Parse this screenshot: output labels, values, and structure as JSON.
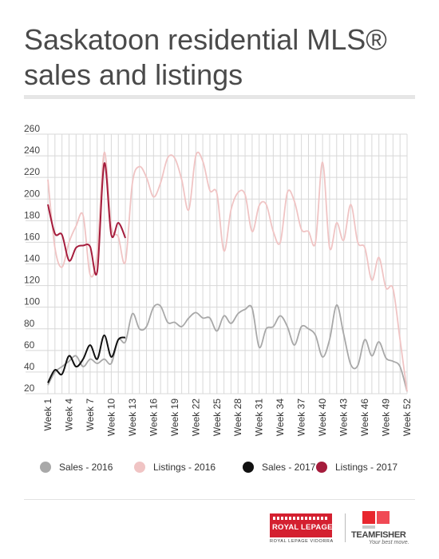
{
  "title_line1": "Saskatoon residential MLS®",
  "title_line2": "sales and listings",
  "chart_data": {
    "type": "line",
    "ylim": [
      20,
      260
    ],
    "yticks": [
      20,
      40,
      60,
      80,
      100,
      120,
      140,
      160,
      180,
      200,
      220,
      240,
      260
    ],
    "xrange": [
      1,
      52
    ],
    "xtick_labels": [
      "Week 1",
      "Week 4",
      "Week 7",
      "Week 10",
      "Week 13",
      "Week 16",
      "Week 19",
      "Week 22",
      "Week 25",
      "Week 28",
      "Week 31",
      "Week 34",
      "Week 37",
      "Week 40",
      "Week 43",
      "Week 46",
      "Week 49",
      "Week 52"
    ],
    "grid": true,
    "legend_position": "bottom",
    "series": [
      {
        "name": "Sales - 2016",
        "color": "#a8a8a8",
        "x": [
          1,
          2,
          3,
          4,
          5,
          6,
          7,
          8,
          9,
          10,
          11,
          12,
          13,
          14,
          15,
          16,
          17,
          18,
          19,
          20,
          21,
          22,
          23,
          24,
          25,
          26,
          27,
          28,
          29,
          30,
          31,
          32,
          33,
          34,
          35,
          36,
          37,
          38,
          39,
          40,
          41,
          42,
          43,
          44,
          45,
          46,
          47,
          48,
          49,
          50,
          51,
          52
        ],
        "y": [
          28,
          40,
          45,
          50,
          55,
          45,
          52,
          48,
          52,
          48,
          70,
          68,
          94,
          80,
          82,
          100,
          101,
          86,
          86,
          82,
          90,
          95,
          90,
          90,
          78,
          92,
          85,
          94,
          98,
          99,
          63,
          80,
          82,
          92,
          82,
          65,
          82,
          80,
          74,
          54,
          70,
          102,
          75,
          47,
          46,
          70,
          55,
          68,
          53,
          50,
          45,
          22
        ]
      },
      {
        "name": "Listings - 2016",
        "color": "#f0c4c4",
        "x": [
          1,
          2,
          3,
          4,
          5,
          6,
          7,
          8,
          9,
          10,
          11,
          12,
          13,
          14,
          15,
          16,
          17,
          18,
          19,
          20,
          21,
          22,
          23,
          24,
          25,
          26,
          27,
          28,
          29,
          30,
          31,
          32,
          33,
          34,
          35,
          36,
          37,
          38,
          39,
          40,
          41,
          42,
          43,
          44,
          45,
          46,
          47,
          48,
          49,
          50,
          51,
          52
        ],
        "y": [
          218,
          155,
          137,
          160,
          175,
          185,
          130,
          150,
          243,
          175,
          165,
          142,
          215,
          230,
          220,
          202,
          215,
          238,
          238,
          218,
          190,
          240,
          235,
          208,
          205,
          152,
          190,
          206,
          204,
          170,
          194,
          195,
          170,
          160,
          206,
          198,
          172,
          170,
          160,
          234,
          155,
          178,
          162,
          195,
          160,
          155,
          125,
          146,
          118,
          117,
          70,
          22
        ]
      },
      {
        "name": "Sales - 2017",
        "color": "#111111",
        "x": [
          1,
          2,
          3,
          4,
          5,
          6,
          7,
          8,
          9,
          10,
          11,
          12
        ],
        "y": [
          30,
          42,
          38,
          55,
          45,
          52,
          65,
          52,
          74,
          54,
          70,
          72
        ]
      },
      {
        "name": "Listings - 2017",
        "color": "#a51c3c",
        "x": [
          1,
          2,
          3,
          4,
          5,
          6,
          7,
          8,
          9,
          10,
          11,
          12
        ],
        "y": [
          195,
          168,
          167,
          143,
          155,
          157,
          156,
          133,
          233,
          167,
          178,
          164
        ]
      }
    ]
  },
  "logos": {
    "royal_lepage_name": "ROYAL LEPAGE",
    "royal_lepage_sub": "ROYAL LEPAGE VIDORRA",
    "teamfisher_name": "TEAMFISHER",
    "teamfisher_tagline": "Your best move.",
    "brand_red": "#d42030"
  }
}
